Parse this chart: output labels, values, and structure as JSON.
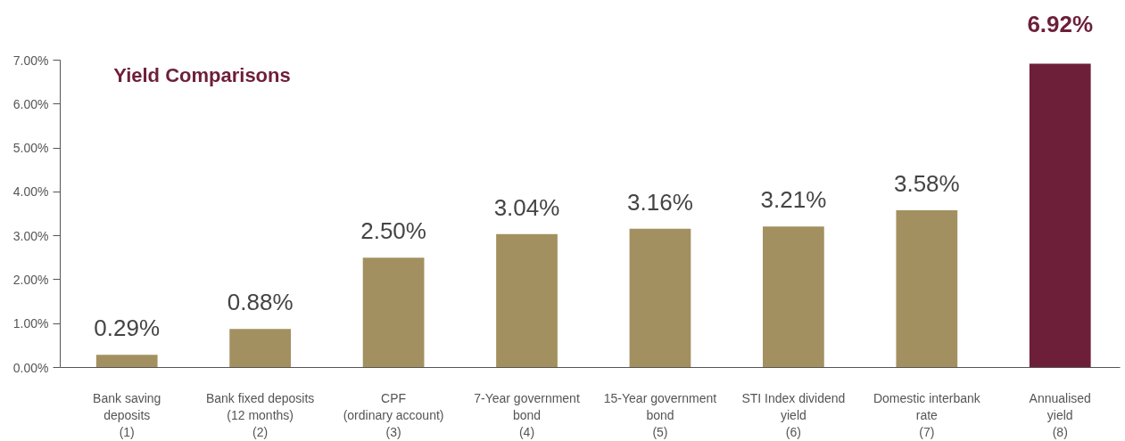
{
  "chart_data": {
    "type": "bar",
    "title": "Yield Comparisons",
    "categories": [
      "Bank saving\ndeposits\n(1)",
      "Bank fixed deposits\n(12 months)\n(2)",
      "CPF\n(ordinary account)\n(3)",
      "7-Year government\nbond\n(4)",
      "15-Year government\nbond\n(5)",
      "STI Index dividend\nyield\n(6)",
      "Domestic interbank\nrate\n(7)",
      "Annualised\nyield\n(8)"
    ],
    "values": [
      0.29,
      0.88,
      2.5,
      3.04,
      3.16,
      3.21,
      3.58,
      6.92
    ],
    "colors": [
      "#a39060",
      "#a39060",
      "#a39060",
      "#a39060",
      "#a39060",
      "#a39060",
      "#a39060",
      "#6d1f3a"
    ],
    "value_labels": [
      "0.29%",
      "0.88%",
      "2.50%",
      "3.04%",
      "3.16%",
      "3.21%",
      "3.58%",
      "6.92%"
    ],
    "ylim": [
      0,
      7
    ],
    "yticks": [
      {
        "value": 0,
        "label": "0.00%"
      },
      {
        "value": 1,
        "label": "1.00%"
      },
      {
        "value": 2,
        "label": "2.00%"
      },
      {
        "value": 3,
        "label": "3.00%"
      },
      {
        "value": 4,
        "label": "4.00%"
      },
      {
        "value": 5,
        "label": "5.00%"
      },
      {
        "value": 6,
        "label": "6.00%"
      },
      {
        "value": 7,
        "label": "7.00%"
      }
    ],
    "grid": false
  }
}
